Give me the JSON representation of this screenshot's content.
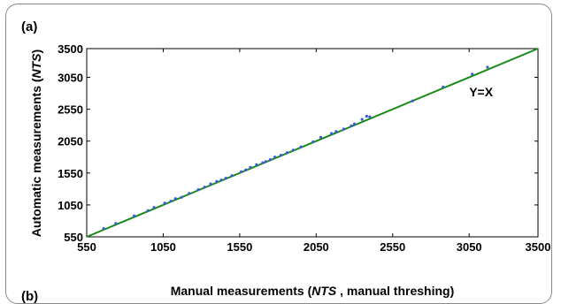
{
  "panel_label": "(a)",
  "panel_next": "(b)",
  "chart_data": {
    "type": "scatter",
    "xlabel_parts": [
      "Manual measurements (",
      "NTS",
      " , manual threshing)"
    ],
    "ylabel_parts": [
      "Automatic measurements (",
      "NTS",
      ")"
    ],
    "xlim": [
      550,
      3500
    ],
    "ylim": [
      550,
      3500
    ],
    "xticks": [
      550,
      1050,
      1550,
      2050,
      2550,
      3050,
      3500
    ],
    "yticks": [
      550,
      1050,
      1550,
      2050,
      2550,
      3050,
      3500
    ],
    "grid": false,
    "colors": {
      "points": "#3b5bdb",
      "line": "#1a8a1a"
    },
    "reference_line": {
      "label": "Y=X",
      "from": [
        550,
        550
      ],
      "to": [
        3500,
        3500
      ]
    },
    "annotation": {
      "text": "Y=X",
      "x": 3050,
      "y": 2750
    },
    "points": [
      [
        660,
        680
      ],
      [
        740,
        760
      ],
      [
        860,
        880
      ],
      [
        950,
        960
      ],
      [
        990,
        1010
      ],
      [
        1060,
        1080
      ],
      [
        1100,
        1110
      ],
      [
        1130,
        1150
      ],
      [
        1170,
        1170
      ],
      [
        1220,
        1230
      ],
      [
        1280,
        1290
      ],
      [
        1320,
        1330
      ],
      [
        1360,
        1380
      ],
      [
        1400,
        1420
      ],
      [
        1430,
        1440
      ],
      [
        1460,
        1470
      ],
      [
        1500,
        1510
      ],
      [
        1560,
        1570
      ],
      [
        1590,
        1600
      ],
      [
        1620,
        1640
      ],
      [
        1660,
        1680
      ],
      [
        1700,
        1710
      ],
      [
        1720,
        1730
      ],
      [
        1750,
        1760
      ],
      [
        1780,
        1800
      ],
      [
        1820,
        1830
      ],
      [
        1860,
        1870
      ],
      [
        1900,
        1910
      ],
      [
        1950,
        1960
      ],
      [
        2030,
        2040
      ],
      [
        2080,
        2110
      ],
      [
        2150,
        2170
      ],
      [
        2180,
        2200
      ],
      [
        2230,
        2240
      ],
      [
        2280,
        2290
      ],
      [
        2300,
        2320
      ],
      [
        2350,
        2390
      ],
      [
        2380,
        2440
      ],
      [
        2400,
        2430
      ],
      [
        2680,
        2680
      ],
      [
        2880,
        2900
      ],
      [
        3070,
        3100
      ],
      [
        3170,
        3210
      ]
    ]
  }
}
